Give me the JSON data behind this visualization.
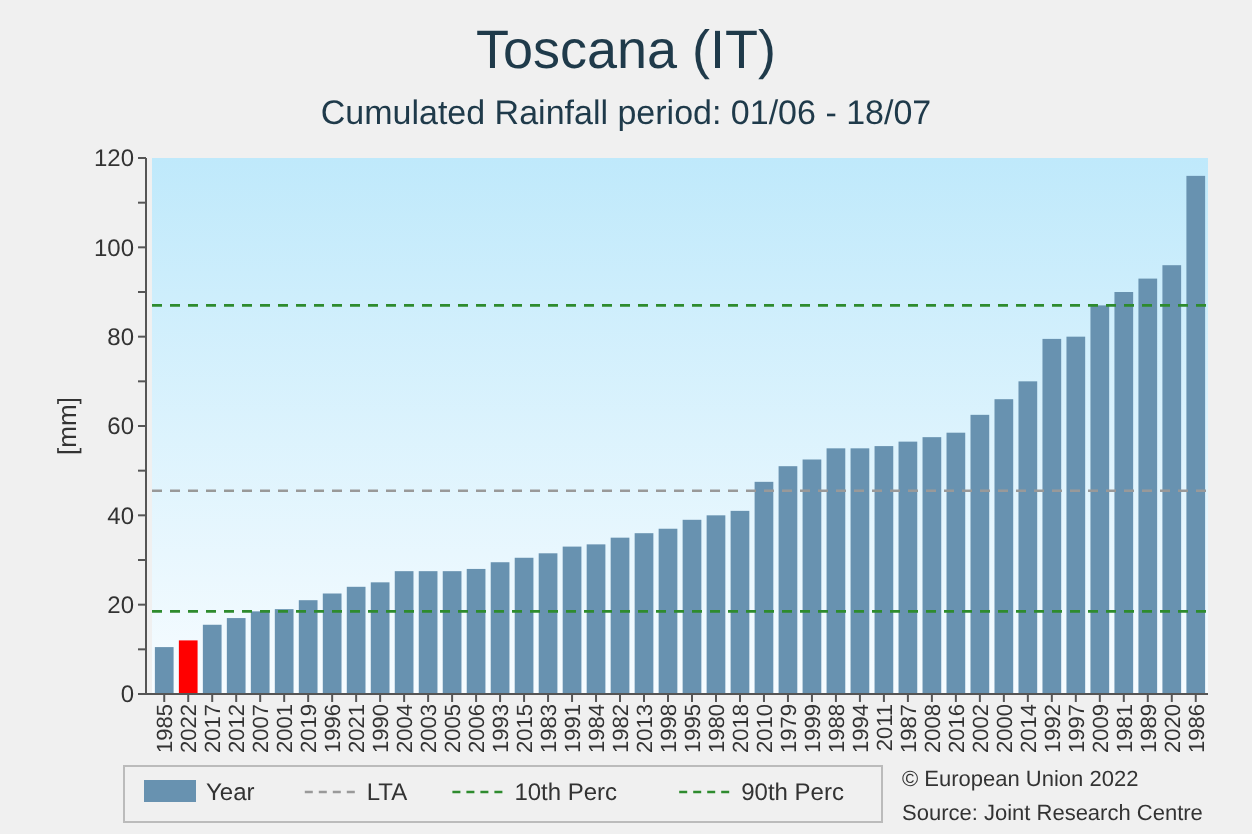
{
  "chart_data": {
    "type": "bar",
    "title": "Toscana (IT)",
    "subtitle": "Cumulated Rainfall period: 01/06 - 18/07",
    "ylabel": "[mm]",
    "categories": [
      "1985",
      "2022",
      "2017",
      "2012",
      "2007",
      "2001",
      "2019",
      "1996",
      "2021",
      "1990",
      "2004",
      "2003",
      "2005",
      "2006",
      "1993",
      "2015",
      "1983",
      "1991",
      "1984",
      "1982",
      "2013",
      "1998",
      "1995",
      "1980",
      "2018",
      "2010",
      "1979",
      "1999",
      "1988",
      "1994",
      "2011",
      "1987",
      "2008",
      "2016",
      "2002",
      "2000",
      "2014",
      "1992",
      "1997",
      "2009",
      "1981",
      "1989",
      "2020",
      "1986"
    ],
    "series": [
      {
        "name": "Year",
        "color": "#6892b0",
        "colors": [
          "#6892b0",
          "#ff0000",
          "#6892b0",
          "#6892b0",
          "#6892b0",
          "#6892b0",
          "#6892b0",
          "#6892b0",
          "#6892b0",
          "#6892b0",
          "#6892b0",
          "#6892b0",
          "#6892b0",
          "#6892b0",
          "#6892b0",
          "#6892b0",
          "#6892b0",
          "#6892b0",
          "#6892b0",
          "#6892b0",
          "#6892b0",
          "#6892b0",
          "#6892b0",
          "#6892b0",
          "#6892b0",
          "#6892b0",
          "#6892b0",
          "#6892b0",
          "#6892b0",
          "#6892b0",
          "#6892b0",
          "#6892b0",
          "#6892b0",
          "#6892b0",
          "#6892b0",
          "#6892b0",
          "#6892b0",
          "#6892b0",
          "#6892b0",
          "#6892b0",
          "#6892b0",
          "#6892b0",
          "#6892b0",
          "#6892b0"
        ],
        "values": [
          10.5,
          12,
          15.5,
          17,
          18.5,
          19,
          21,
          22.5,
          24,
          25,
          27.5,
          27.5,
          27.5,
          28,
          29.5,
          30.5,
          31.5,
          33,
          33.5,
          35,
          36,
          37,
          39,
          40,
          41,
          47.5,
          51,
          52.5,
          55,
          55,
          55.5,
          56.5,
          57.5,
          58.5,
          62.5,
          66,
          70,
          79.5,
          80,
          87,
          90,
          93,
          96,
          116
        ]
      }
    ],
    "ylim": [
      0,
      120
    ],
    "yticks": [
      0,
      {
        "value": 10,
        "label": null
      },
      20,
      {
        "value": 30,
        "label": null
      },
      40,
      {
        "value": 50,
        "label": null
      },
      60,
      {
        "value": 70,
        "label": null
      },
      80,
      {
        "value": 90,
        "label": null
      },
      100,
      {
        "value": 110,
        "label": null
      },
      120
    ],
    "ref_lines": [
      {
        "axis": "y",
        "value": 45.5,
        "label": "LTA",
        "color": "#999999",
        "line_style": "dashed"
      },
      {
        "axis": "y",
        "value": 18.5,
        "label": "10th Perc",
        "color": "#2e8b2e",
        "line_style": "dashed"
      },
      {
        "axis": "y",
        "value": 87,
        "label": "90th Perc",
        "color": "#2e8b2e",
        "line_style": "dashed"
      }
    ],
    "legend": "bottom",
    "annotations": [
      "© European Union 2022",
      "Source: Joint Research Centre"
    ]
  }
}
